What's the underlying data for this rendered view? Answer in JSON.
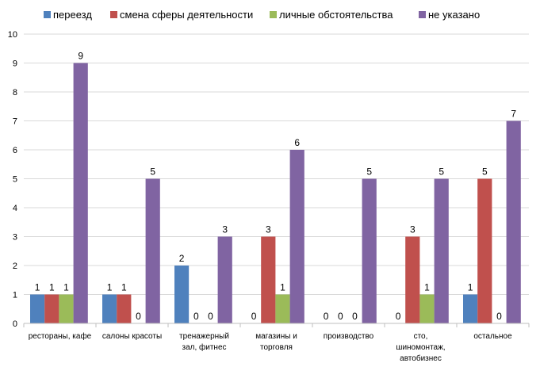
{
  "chart_data": {
    "type": "bar",
    "categories": [
      [
        "рестораны, кафе"
      ],
      [
        "салоны красоты"
      ],
      [
        "тренажерный",
        "зал, фитнес"
      ],
      [
        "магазины и",
        "торговля"
      ],
      [
        "производство"
      ],
      [
        "сто,",
        "шиномонтаж,",
        "автобизнес"
      ],
      [
        "остальное"
      ]
    ],
    "series": [
      {
        "name": "переезд",
        "color": "#4f81bd",
        "values": [
          1,
          1,
          2,
          0,
          0,
          0,
          1
        ]
      },
      {
        "name": "смена сферы  деятельности",
        "color": "#c0504d",
        "values": [
          1,
          1,
          0,
          3,
          0,
          3,
          5
        ]
      },
      {
        "name": "личные обстоятельства",
        "color": "#9bbb59",
        "values": [
          1,
          0,
          0,
          1,
          0,
          1,
          0
        ]
      },
      {
        "name": "не указано",
        "color": "#8064a2",
        "values": [
          9,
          5,
          3,
          6,
          5,
          5,
          7
        ]
      }
    ],
    "ylim": [
      0,
      10
    ],
    "yticks": [
      "0",
      "1",
      "2",
      "3",
      "4",
      "5",
      "6",
      "7",
      "8",
      "9",
      "10"
    ],
    "grid": true,
    "legend_position": "top",
    "data_labels": true
  }
}
